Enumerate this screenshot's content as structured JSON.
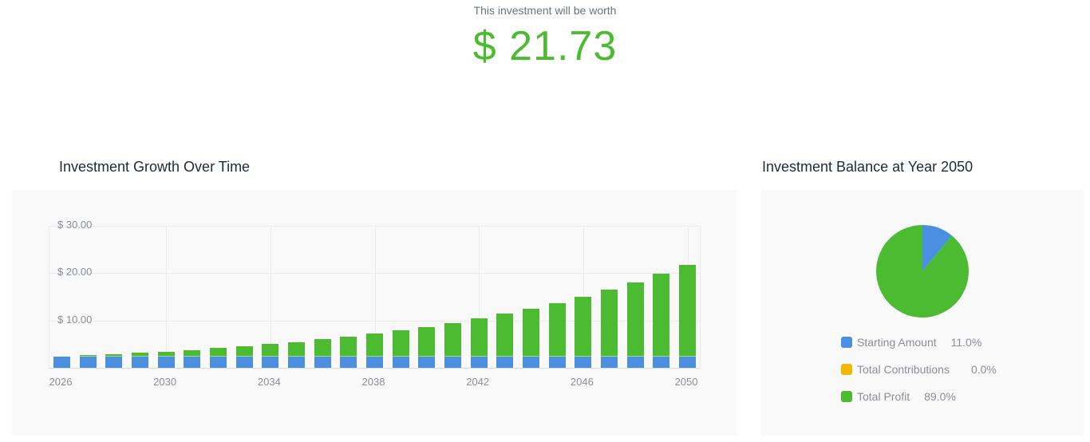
{
  "summary": {
    "headline": "This investment will be worth",
    "amount": "$ 21.73"
  },
  "growth_chart": {
    "title": "Investment Growth Over Time"
  },
  "balance_chart": {
    "title": "Investment Balance at Year 2050",
    "legend": [
      {
        "label": "Starting Amount",
        "value": "11.0%",
        "color": "#4a8fe0"
      },
      {
        "label": "Total Contributions",
        "value": "0.0%",
        "color": "#f2b705"
      },
      {
        "label": "Total Profit",
        "value": "89.0%",
        "color": "#4cbb32"
      }
    ]
  },
  "chart_data": [
    {
      "type": "bar",
      "stacked": true,
      "title": "Investment Growth Over Time",
      "xlabel": "",
      "ylabel": "",
      "x": [
        2026,
        2027,
        2028,
        2029,
        2030,
        2031,
        2032,
        2033,
        2034,
        2035,
        2036,
        2037,
        2038,
        2039,
        2040,
        2041,
        2042,
        2043,
        2044,
        2045,
        2046,
        2047,
        2048,
        2049,
        2050
      ],
      "x_tick_labels": [
        "2026",
        "2030",
        "2034",
        "2038",
        "2042",
        "2046",
        "2050"
      ],
      "y_tick_labels": [
        "$ 10.00",
        "$ 20.00",
        "$ 30.00"
      ],
      "ylim": [
        0,
        30
      ],
      "grid": true,
      "series": [
        {
          "name": "Starting Amount",
          "color": "#4a8fe0",
          "values": [
            2.39,
            2.39,
            2.39,
            2.39,
            2.39,
            2.39,
            2.39,
            2.39,
            2.39,
            2.39,
            2.39,
            2.39,
            2.39,
            2.39,
            2.39,
            2.39,
            2.39,
            2.39,
            2.39,
            2.39,
            2.39,
            2.39,
            2.39,
            2.39,
            2.39
          ]
        },
        {
          "name": "Total Profit",
          "color": "#4cbb32",
          "values": [
            0.0,
            0.23,
            0.48,
            0.76,
            1.06,
            1.4,
            1.76,
            2.16,
            2.6,
            3.08,
            3.61,
            4.19,
            4.82,
            5.51,
            6.27,
            7.11,
            8.02,
            9.03,
            10.13,
            11.33,
            12.65,
            14.1,
            15.69,
            17.43,
            19.34
          ]
        }
      ]
    },
    {
      "type": "pie",
      "title": "Investment Balance at Year 2050",
      "categories": [
        "Starting Amount",
        "Total Contributions",
        "Total Profit"
      ],
      "values": [
        11.0,
        0.0,
        89.0
      ],
      "colors": [
        "#4a8fe0",
        "#f2b705",
        "#4cbb32"
      ],
      "legend_position": "bottom"
    }
  ]
}
